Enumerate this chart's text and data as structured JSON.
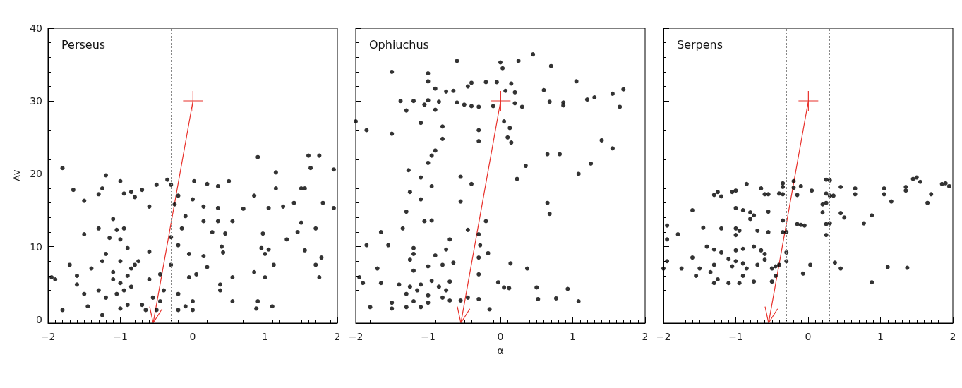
{
  "chart_data": [
    {
      "type": "scatter",
      "title": "Perseus",
      "ylabel": "A$_{V}$",
      "xlim": [
        -2,
        2
      ],
      "xticks": [
        -2,
        -1,
        0,
        1,
        2
      ],
      "ylim": [
        -0.5,
        40
      ],
      "yticks": [
        0,
        10,
        20,
        30,
        40
      ],
      "marker": "circle",
      "grid": false,
      "ref_lines": [
        {
          "axis": "x",
          "value": -0.3,
          "line_style": "dotted",
          "color": "#888888"
        },
        {
          "axis": "x",
          "value": 0.3,
          "line_style": "dotted",
          "color": "#888888"
        }
      ],
      "series": [
        {
          "color": "#000000",
          "x": [
            -1.8,
            -1.65,
            -1.95,
            -1.8,
            -1.7,
            -1.6,
            -1.5,
            -1.5,
            -1.4,
            -1.3,
            -1.3,
            -1.25,
            -1.2,
            -1.15,
            -1.1,
            -1.05,
            -1.0,
            -0.95,
            -0.85,
            -0.8,
            -0.7,
            -0.6,
            -0.5,
            -0.35,
            -0.3,
            -0.25,
            -0.2,
            -0.1,
            0.0,
            0.02,
            0.15,
            0.2,
            0.35,
            0.35,
            0.5,
            0.85,
            0.9,
            1.15,
            1.15,
            1.6,
            1.75,
            1.63,
            1.95,
            1.8,
            1.4,
            1.5,
            1.55,
            1.25,
            1.05,
            0.7,
            0.55,
            0.45,
            0.35,
            0.27,
            0.15,
            0.4,
            0.42,
            0.15,
            0.2,
            -0.05,
            -0.15,
            -0.3,
            -0.2,
            -0.95,
            -1.0,
            -0.9,
            -1.2,
            -1.25,
            -0.75,
            -0.6,
            0.05,
            0.0,
            -0.3,
            -0.05,
            -0.2,
            -0.2,
            0.0,
            -0.1,
            0.38,
            0.38,
            0.55,
            0.55,
            0.85,
            0.95,
            0.97,
            0.9,
            0.88,
            1.0,
            1.0,
            1.05,
            1.1,
            1.12,
            1.3,
            1.5,
            1.55,
            1.7,
            1.7,
            1.75,
            1.78,
            1.95,
            1.45,
            -1.0,
            -0.9,
            -1.05,
            -0.85,
            -1.1,
            -0.95,
            -1.2,
            -0.8,
            -1.3,
            -0.7,
            -1.5,
            -0.6,
            -0.55,
            -0.45,
            -0.45,
            -0.4,
            -1.25,
            -1.45,
            -1.9,
            -1.6,
            -0.9,
            -1.0,
            -0.65,
            -0.5,
            -0.85,
            -1.0,
            -1.1
          ],
          "values": [
            20.8,
            17.8,
            5.8,
            1.3,
            7.5,
            4.8,
            16.3,
            11.7,
            7,
            12.5,
            17.2,
            18,
            19.8,
            11.2,
            13.8,
            12.3,
            19,
            17.3,
            17.5,
            16.8,
            17.8,
            15.5,
            18.5,
            19.2,
            18.5,
            15.8,
            17,
            14.2,
            16.5,
            19,
            15.5,
            18.6,
            18.3,
            15.3,
            19,
            17,
            22.3,
            20.2,
            18,
            22.5,
            22.5,
            20.8,
            20.6,
            16,
            16,
            18,
            18,
            15.5,
            15.3,
            15.2,
            13.5,
            11.8,
            13.5,
            12,
            13.5,
            10,
            9.2,
            8.7,
            7.2,
            9,
            12.5,
            11.3,
            10.2,
            12.5,
            11,
            9.8,
            9,
            8,
            8,
            9.3,
            6.2,
            2.5,
            7.5,
            5.8,
            3.5,
            1.3,
            1.3,
            1.8,
            4.8,
            4,
            2.5,
            5.8,
            6.5,
            9.8,
            11.8,
            2.5,
            1.5,
            5.8,
            9,
            9.6,
            1.8,
            7.5,
            11,
            13.3,
            9.5,
            12.5,
            7.5,
            5.8,
            8.5,
            15.3,
            12,
            5,
            6,
            3.5,
            4.5,
            6.5,
            4,
            3,
            7.5,
            4,
            2,
            3.5,
            5.5,
            3,
            6.2,
            2.5,
            4,
            0.6,
            1.8,
            5.5,
            6,
            2,
            1.5,
            1.3,
            1.3,
            7,
            8,
            5.5
          ]
        }
      ]
    },
    {
      "type": "scatter",
      "title": "Ophiuchus",
      "xlabel": "α",
      "tick_labels": "x",
      "xlim": [
        -2,
        2
      ],
      "xticks": [
        -2,
        -1,
        0,
        1,
        2
      ],
      "ylim": [
        -0.5,
        40
      ],
      "yticks": [
        0,
        10,
        20,
        30,
        40
      ],
      "marker": "circle",
      "grid": false,
      "ref_lines": [
        {
          "axis": "x",
          "value": -0.3,
          "line_style": "dotted",
          "color": "#888888"
        },
        {
          "axis": "x",
          "value": 0.3,
          "line_style": "dotted",
          "color": "#888888"
        }
      ],
      "series": [
        {
          "color": "#000000",
          "x": [
            -1.5,
            -0.6,
            0.0,
            0.03,
            0.25,
            0.45,
            0.7,
            1.05,
            0.6,
            1.7,
            1.55,
            1.3,
            1.2,
            0.68,
            0.87,
            0.87,
            1.65,
            -1.0,
            -1.0,
            -0.9,
            -0.45,
            -0.4,
            -0.2,
            -0.05,
            0.15,
            0.07,
            0.2,
            -0.75,
            -0.65,
            -1.38,
            -1.2,
            -1.05,
            -1.0,
            -0.85,
            -0.6,
            -0.5,
            -0.4,
            -0.3,
            -0.1,
            0.2,
            0.3,
            -1.3,
            -0.9,
            -2.0,
            -1.85,
            -1.5,
            -1.1,
            -0.8,
            -0.3,
            0.05,
            0.13,
            0.1,
            0.15,
            -0.3,
            -0.8,
            -0.9,
            -0.95,
            -1.0,
            0.65,
            0.82,
            1.4,
            1.55,
            1.25,
            1.08,
            0.23,
            0.35,
            -1.27,
            -1.1,
            -0.55,
            -0.4,
            -1.25,
            -0.95,
            -1.1,
            -0.55,
            0.65,
            0.68,
            -0.2,
            -1.3,
            -1.35,
            -1.05,
            -0.95,
            -1.65,
            -0.45,
            -0.3,
            -0.28,
            -0.7,
            -1.85,
            -1.55,
            -1.2,
            -1.2,
            -0.9,
            -0.75,
            -0.3,
            -0.17,
            -1.25,
            -0.8,
            -0.65,
            -1.7,
            -1.2,
            -1.0,
            0.14,
            0.37,
            -0.3,
            -1.95,
            -1.9,
            -1.65,
            -1.4,
            -1.25,
            -1.1,
            -0.95,
            -0.85,
            -0.7,
            -0.75,
            -1.15,
            -1.3,
            -1.0,
            -0.8,
            -0.7,
            -1.5,
            -1.2,
            -1.0,
            -1.1,
            -1.3,
            -1.5,
            -1.8,
            -0.55,
            -0.45,
            -0.3,
            -0.15,
            -0.03,
            0.05,
            0.12,
            0.5,
            0.52,
            0.77,
            0.93,
            1.08
          ],
          "values": [
            34,
            35.5,
            35.3,
            34.5,
            35.5,
            36.4,
            34.8,
            32.7,
            31.5,
            31.6,
            31,
            30.5,
            30.2,
            29.9,
            29.8,
            29.4,
            29.2,
            32.7,
            33.8,
            31.7,
            32,
            32.5,
            32.6,
            32.6,
            32.4,
            31.4,
            31.2,
            31.3,
            31.4,
            30,
            30,
            29.5,
            30.1,
            29.9,
            29.8,
            29.5,
            29.3,
            29.2,
            29.3,
            29.7,
            29.2,
            28.7,
            28.8,
            27.2,
            26,
            25.5,
            27,
            26.5,
            26,
            27.2,
            26.3,
            25,
            24.3,
            24.5,
            24.8,
            23.2,
            22.5,
            21.5,
            22.7,
            22.7,
            24.6,
            23.5,
            21.4,
            20,
            19.3,
            21.1,
            20.5,
            19.5,
            19.6,
            18.6,
            17.5,
            18.3,
            16.5,
            16.2,
            16,
            14.5,
            13.5,
            14.8,
            12.5,
            13.5,
            13.6,
            12,
            12.3,
            11.7,
            10.2,
            11,
            10.2,
            10.2,
            9.8,
            9,
            8.8,
            9.6,
            8.5,
            9.1,
            8.2,
            7.5,
            7.8,
            7,
            6.7,
            7.3,
            7.7,
            7,
            6.2,
            5.8,
            5,
            5,
            4.8,
            4.5,
            4.8,
            5.3,
            4.5,
            5.2,
            4,
            4,
            3.5,
            3.3,
            3,
            2.6,
            2.3,
            2.5,
            2.3,
            1.7,
            1.7,
            1.5,
            1.7,
            2.6,
            3,
            2.8,
            1.4,
            5.1,
            4.4,
            4.3,
            4.4,
            2.8,
            2.9,
            4.2,
            2.5
          ]
        }
      ]
    },
    {
      "type": "scatter",
      "title": "Serpens",
      "tick_labels": "x",
      "xlim": [
        -2,
        2
      ],
      "xticks": [
        -2,
        -1,
        0,
        1,
        2
      ],
      "ylim": [
        -0.5,
        40
      ],
      "yticks": [
        0,
        10,
        20,
        30,
        40
      ],
      "marker": "circle",
      "grid": false,
      "ref_lines": [
        {
          "axis": "x",
          "value": -0.3,
          "line_style": "dotted",
          "color": "#888888"
        },
        {
          "axis": "x",
          "value": 0.3,
          "line_style": "dotted",
          "color": "#888888"
        }
      ],
      "series": [
        {
          "color": "#000000",
          "x": [
            -0.2,
            -0.35,
            -0.35,
            0.25,
            0.3,
            1.45,
            1.5,
            1.55,
            1.85,
            1.9,
            1.95,
            1.35,
            1.35,
            1.05,
            0.65,
            0.45,
            0.05,
            -0.1,
            -0.2,
            -0.65,
            -0.85,
            -1.0,
            -1.05,
            -1.25,
            -1.3,
            -1.2,
            -0.6,
            -0.55,
            -0.4,
            -0.35,
            -0.15,
            0.25,
            0.3,
            0.35,
            0.65,
            1.05,
            1.7,
            1.65,
            1.15,
            0.25,
            0.2,
            0.2,
            0.45,
            0.5,
            0.88,
            0.77,
            0.3,
            0.25,
            -0.15,
            -0.05,
            -0.1,
            -0.35,
            -0.55,
            -0.9,
            -1.0,
            -1.6,
            -0.8,
            -0.75,
            -0.8,
            -0.95,
            -1.0,
            -1.0,
            -1.2,
            -0.7,
            -0.55,
            -0.35,
            -0.3,
            -1.45,
            -1.8,
            -1.95,
            -1.95,
            0.25,
            -1.4,
            -1.3,
            -1.2,
            -1.0,
            -0.9,
            -0.75,
            -0.65,
            -0.6,
            -0.3,
            -1.6,
            -1.75,
            -2.0,
            -1.95,
            -1.1,
            -1.0,
            -0.9,
            -1.05,
            -0.85,
            -0.7,
            -0.5,
            -0.45,
            -0.6,
            -1.3,
            -1.35,
            -1.5,
            -1.55,
            -1.25,
            -1.3,
            -1.1,
            -0.95,
            -0.75,
            -0.9,
            -0.5,
            -0.45,
            -0.4,
            -0.3,
            0.03,
            -0.07,
            0.37,
            0.45,
            1.1,
            1.37,
            0.88
          ],
          "values": [
            19,
            18.7,
            18.2,
            19.2,
            19.1,
            19.3,
            19.5,
            18.9,
            18.6,
            18.7,
            18.3,
            18.2,
            17.7,
            18,
            18,
            18.2,
            17.7,
            18.3,
            18.1,
            18,
            18.6,
            17.7,
            17.5,
            17.5,
            17.1,
            16.9,
            17.2,
            17.2,
            17.3,
            17.2,
            17.1,
            17.3,
            17,
            17,
            17.2,
            17.2,
            17.2,
            16,
            16.2,
            16,
            15.8,
            14.7,
            14.6,
            14,
            14.3,
            13.2,
            13.2,
            13.1,
            13.1,
            12.9,
            13,
            13.6,
            14.8,
            15,
            15.3,
            15,
            14.7,
            14.3,
            13.8,
            12.2,
            12.5,
            11.6,
            12.5,
            12.2,
            12,
            12,
            12,
            12.6,
            11.7,
            12.9,
            11,
            11.6,
            10,
            9.6,
            9.2,
            9.5,
            9.7,
            10,
            9.5,
            9,
            9.2,
            8.5,
            7,
            7,
            8,
            8.3,
            8,
            7.7,
            7.3,
            7,
            7.5,
            7,
            7.3,
            8.2,
            7.5,
            6.5,
            7,
            6,
            5.5,
            5,
            5,
            5,
            5.2,
            6,
            5.2,
            6,
            7.5,
            8,
            7.5,
            6.3,
            7.8,
            7,
            7.2,
            7.1,
            5.1
          ]
        }
      ]
    }
  ]
}
